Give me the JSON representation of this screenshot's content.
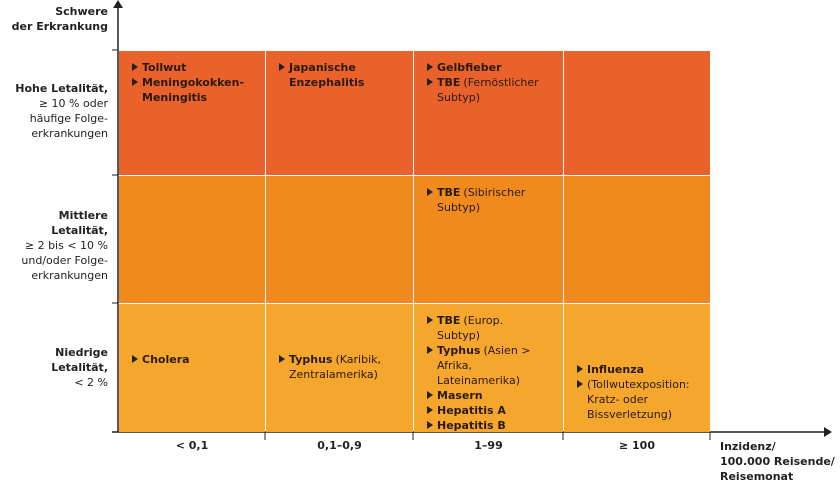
{
  "y_axis_title": [
    "Schwere",
    "der Erkrankung"
  ],
  "x_axis_title": [
    "Inzidenz/",
    "100.000 Reisende/",
    "Reisemonat"
  ],
  "columns": [
    "< 0,1",
    "0,1–0,9",
    "1–99",
    "≥ 100"
  ],
  "rows": [
    {
      "label": [
        "Hohe Letalität,",
        "≥ 10 % oder",
        "häufige Folge-",
        "erkrankungen"
      ],
      "cells": [
        [
          {
            "name": "Tollwut"
          },
          {
            "name": "Meningokokken-Meningitis"
          }
        ],
        [
          {
            "name": "Japanische Enzephalitis"
          }
        ],
        [
          {
            "name": "Gelbfieber"
          },
          {
            "name": "TBE",
            "note": "(Fernöstlicher Subtyp)"
          }
        ],
        []
      ]
    },
    {
      "label": [
        "Mittlere Letalität,",
        "≥ 2 bis < 10 %",
        "und/oder Folge-",
        "erkrankungen"
      ],
      "cells": [
        [],
        [],
        [
          {
            "name": "TBE",
            "note": "(Sibirischer Subtyp)"
          }
        ],
        []
      ]
    },
    {
      "label": [
        "Niedrige Letalität,",
        "< 2 %"
      ],
      "cells": [
        [
          {
            "name": "Cholera"
          }
        ],
        [
          {
            "name": "Typhus",
            "note": "(Karibik, Zentralamerika)"
          }
        ],
        [
          {
            "name": "TBE",
            "note": "(Europ. Subtyp)"
          },
          {
            "name": "Typhus",
            "note": "(Asien > Afrika, Lateinamerika)"
          },
          {
            "name": "Masern"
          },
          {
            "name": "Hepatitis A"
          },
          {
            "name": "Hepatitis B"
          }
        ],
        [
          {
            "name": "Influenza"
          },
          {
            "note": "(Tollwutexposition: Kratz- oder Bissverletzung)"
          }
        ]
      ]
    }
  ]
}
